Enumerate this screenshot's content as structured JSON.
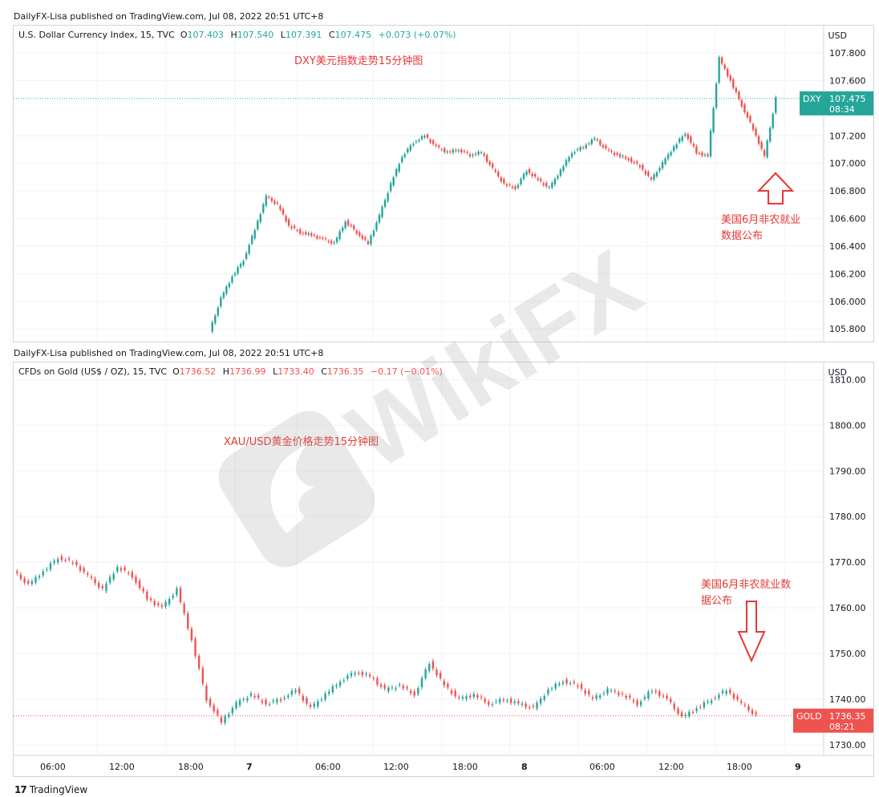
{
  "top_publish": "DailyFX-Lisa published on TradingView.com, Jul 08, 2022 20:51 UTC+8",
  "bottom_publish": "DailyFX-Lisa published on TradingView.com, Jul 08, 2022 20:51 UTC+8",
  "watermark": "WikiFX",
  "footer_brand": "TradingView",
  "colors": {
    "up": "#26a69a",
    "down": "#ef5350",
    "annotation": "#e53935",
    "grid": "#f0f3fa",
    "axis": "#d1d4dc"
  },
  "dxy": {
    "legend": {
      "symbol": "U.S. Dollar Currency Index, 15, TVC",
      "o_label": "O",
      "o": "107.403",
      "h_label": "H",
      "h": "107.540",
      "l_label": "L",
      "l": "107.391",
      "c_label": "C",
      "c": "107.475",
      "chg": "+0.073 (+0.07%)"
    },
    "currency": "USD",
    "annotation_title": "DXY美元指数走势15分钟图",
    "nfp_line1": "美国6月非农就业",
    "nfp_line2": "数据公布",
    "price_tag": {
      "label": "DXY",
      "value": "107.475",
      "countdown": "08:34"
    }
  },
  "gold": {
    "legend": {
      "symbol": "CFDs on Gold (US$ / OZ), 15, TVC",
      "o_label": "O",
      "o": "1736.52",
      "h_label": "H",
      "h": "1736.99",
      "l_label": "L",
      "l": "1733.40",
      "c_label": "C",
      "c": "1736.35",
      "chg": "−0.17 (−0.01%)"
    },
    "currency": "USD",
    "annotation_title": "XAU/USD黄金价格走势15分钟图",
    "nfp_line1": "美国6月非农就业数",
    "nfp_line2": "据公布",
    "price_tag": {
      "label": "GOLD",
      "value": "1736.35",
      "countdown": "08:21"
    }
  },
  "chart_data": [
    {
      "type": "line",
      "title": "DXY美元指数走势15分钟图",
      "series": [
        {
          "name": "DXY",
          "x": [
            0,
            1,
            2,
            3,
            4,
            5,
            6,
            7,
            8,
            9,
            10,
            11,
            12,
            13,
            14,
            15,
            16,
            17,
            18,
            19,
            20,
            21,
            22,
            23,
            24,
            25,
            26,
            27,
            28,
            29,
            30,
            31,
            32,
            33,
            34,
            35,
            36,
            37,
            38,
            39,
            40,
            41,
            42,
            43,
            44,
            45,
            46,
            47,
            48,
            49,
            50
          ],
          "values": [
            105.78,
            106.02,
            106.18,
            106.3,
            106.52,
            106.76,
            106.7,
            106.55,
            106.5,
            106.48,
            106.45,
            106.42,
            106.58,
            106.5,
            106.42,
            106.62,
            106.85,
            107.05,
            107.15,
            107.2,
            107.12,
            107.08,
            107.1,
            107.06,
            107.08,
            106.96,
            106.85,
            106.82,
            106.95,
            106.88,
            106.82,
            106.95,
            107.08,
            107.12,
            107.18,
            107.1,
            107.06,
            107.03,
            106.98,
            106.88,
            107.0,
            107.12,
            107.22,
            107.08,
            107.05,
            107.76,
            107.6,
            107.42,
            107.25,
            107.05,
            107.47
          ]
        }
      ],
      "ylim": [
        105.72,
        107.94
      ],
      "yticks": [
        "107.800",
        "107.600",
        "107.200",
        "107.000",
        "106.800",
        "106.600",
        "106.400",
        "106.200",
        "106.000",
        "105.800"
      ]
    },
    {
      "type": "line",
      "title": "XAU/USD黄金价格走势15分钟图",
      "series": [
        {
          "name": "GOLD",
          "x": [
            0,
            1,
            2,
            3,
            4,
            5,
            6,
            7,
            8,
            9,
            10,
            11,
            12,
            13,
            14,
            15,
            16,
            17,
            18,
            19,
            20,
            21,
            22,
            23,
            24,
            25,
            26,
            27,
            28,
            29,
            30,
            31,
            32,
            33,
            34,
            35,
            36,
            37,
            38,
            39,
            40,
            41,
            42,
            43,
            44,
            45,
            46,
            47,
            48,
            49,
            50
          ],
          "values": [
            1768,
            1765,
            1768,
            1771,
            1770,
            1767,
            1764,
            1769,
            1767,
            1762,
            1760,
            1764,
            1753,
            1740,
            1735,
            1739,
            1741,
            1739,
            1740,
            1742,
            1738,
            1741,
            1744,
            1746,
            1745,
            1742,
            1743,
            1741,
            1748,
            1743,
            1740,
            1741,
            1739,
            1740,
            1739,
            1738,
            1742,
            1744,
            1743,
            1740,
            1742,
            1741,
            1739,
            1742,
            1740,
            1736,
            1738,
            1740,
            1742,
            1739,
            1736.35
          ]
        }
      ],
      "ylim": [
        1727.0,
        1812.0
      ],
      "yticks": [
        "1810.00",
        "1800.00",
        "1790.00",
        "1780.00",
        "1770.00",
        "1760.00",
        "1750.00",
        "1740.00",
        "1730.00"
      ]
    }
  ],
  "xaxis_labels": [
    "06:00",
    "12:00",
    "18:00",
    "7",
    "06:00",
    "12:00",
    "18:00",
    "8",
    "06:00",
    "12:00",
    "18:00",
    "9"
  ]
}
